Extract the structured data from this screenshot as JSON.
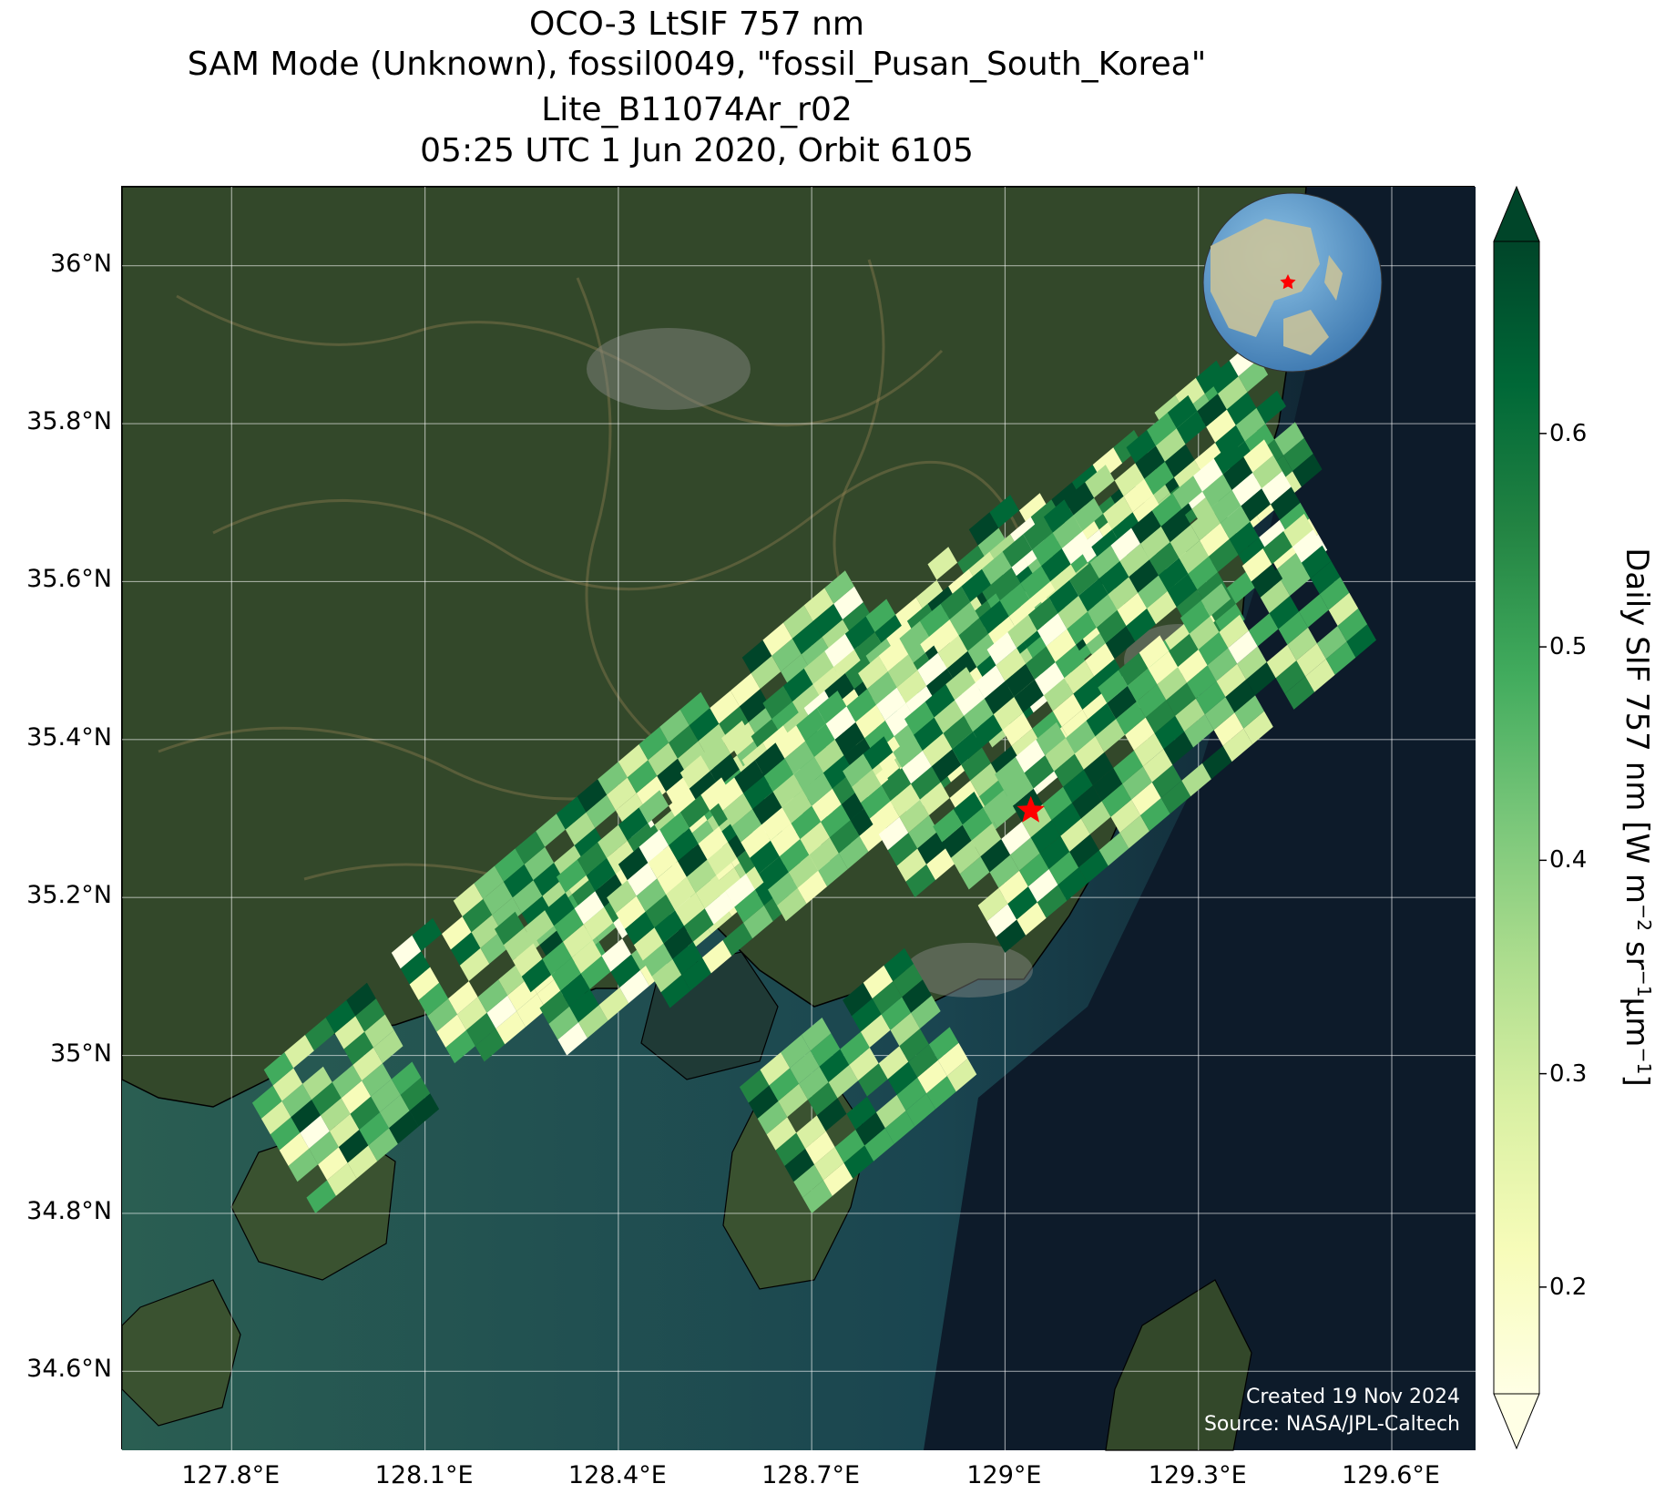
{
  "title": {
    "line1": "OCO-3 LtSIF 757 nm",
    "line2": "SAM Mode (Unknown), fossil0049, \"fossil_Pusan_South_Korea\"",
    "line3": "Lite_B11074Ar_r02",
    "line4": "05:25 UTC 1 Jun 2020, Orbit 6105"
  },
  "map": {
    "lon_range": [
      127.63,
      129.73
    ],
    "lat_range": [
      34.5,
      36.1
    ],
    "lat_ticks": [
      {
        "value": 36.0,
        "label": "36°N"
      },
      {
        "value": 35.8,
        "label": "35.8°N"
      },
      {
        "value": 35.6,
        "label": "35.6°N"
      },
      {
        "value": 35.4,
        "label": "35.4°N"
      },
      {
        "value": 35.2,
        "label": "35.2°N"
      },
      {
        "value": 35.0,
        "label": "35°N"
      },
      {
        "value": 34.8,
        "label": "34.8°N"
      },
      {
        "value": 34.6,
        "label": "34.6°N"
      }
    ],
    "lon_ticks": [
      {
        "value": 127.8,
        "label": "127.8°E"
      },
      {
        "value": 128.1,
        "label": "128.1°E"
      },
      {
        "value": 128.4,
        "label": "128.4°E"
      },
      {
        "value": 128.7,
        "label": "128.7°E"
      },
      {
        "value": 129.0,
        "label": "129°E"
      },
      {
        "value": 129.3,
        "label": "129.3°E"
      },
      {
        "value": 129.6,
        "label": "129.6°E"
      }
    ],
    "target_marker": {
      "lon": 129.04,
      "lat": 35.31,
      "color": "#ff0000",
      "icon": "star-icon"
    },
    "colors": {
      "land": "#2f4424",
      "sea_near": "#24564f",
      "sea_far": "#0d1b2a"
    },
    "inset_globe": {
      "icon": "globe-icon",
      "marker_icon": "star-icon"
    },
    "grid": true
  },
  "credit": {
    "created": "Created 19 Nov 2024",
    "source": "Source: NASA/JPL-Caltech"
  },
  "colorbar": {
    "label_main": "Daily SIF 757 nm [W m",
    "label_sup1": "−2",
    "label_mid": " sr",
    "label_sup2": "−1",
    "label_end1": "μm",
    "label_sup3": "−1",
    "label_end2": "]",
    "range": [
      0.15,
      0.69
    ],
    "ticks": [
      {
        "value": 0.6,
        "label": "0.6"
      },
      {
        "value": 0.5,
        "label": "0.5"
      },
      {
        "value": 0.4,
        "label": "0.4"
      },
      {
        "value": 0.3,
        "label": "0.3"
      },
      {
        "value": 0.2,
        "label": "0.2"
      }
    ],
    "colormap": [
      "#ffffe5",
      "#f7fcb9",
      "#d9f0a3",
      "#addd8e",
      "#78c679",
      "#41ab5d",
      "#238443",
      "#006837",
      "#004529"
    ],
    "extend": "both"
  }
}
